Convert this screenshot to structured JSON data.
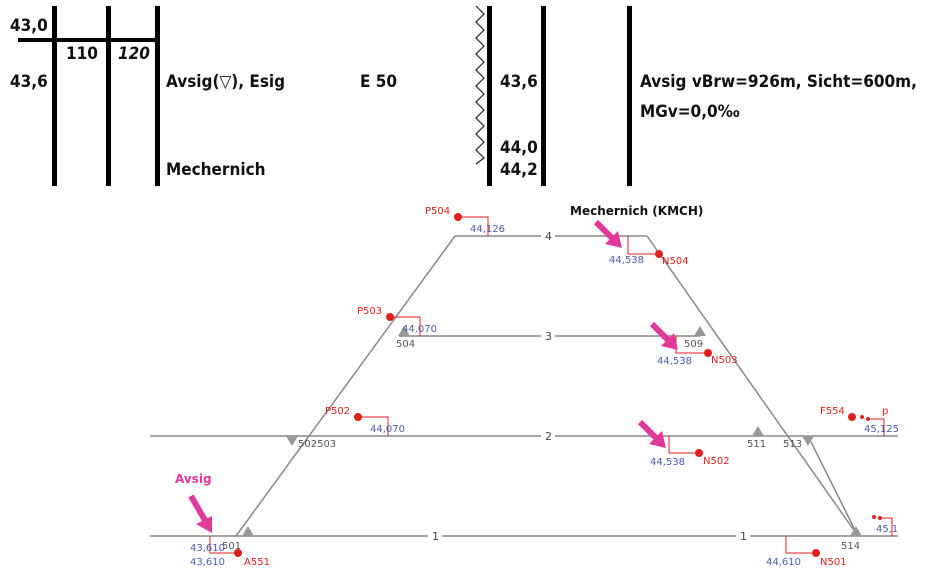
{
  "table": {
    "rows": {
      "km_a": "43,0",
      "km_b": "43,6",
      "speed_1": "110",
      "speed_2": "120",
      "signal_text": "Avsig(▽), Esig",
      "station_name": "Mechernich",
      "e_value": "E 50",
      "km_right_1": "43,6",
      "km_right_2": "44,0",
      "km_right_3": "44,2",
      "remark_line1": "Avsig vBrw=926m, Sicht=600m,",
      "remark_line2": "MGv=0,0‰"
    }
  },
  "diagram": {
    "station_title": "Mechernich (KMCH)",
    "avsig_label": "Avsig",
    "tracks": [
      {
        "label": "4"
      },
      {
        "label": "3"
      },
      {
        "label": "2"
      },
      {
        "label": "1"
      },
      {
        "label": "1"
      }
    ],
    "switches": {
      "s504": "504",
      "s509": "509",
      "s502503": "502503",
      "s511": "511",
      "s513": "513",
      "s501": "501",
      "s514": "514"
    },
    "signals": {
      "P504": "P504",
      "N504": "N504",
      "P503": "P503",
      "N503": "N503",
      "P502": "P502",
      "N502": "N502",
      "F554": "F554",
      "p": "p",
      "A551": "A551",
      "N501": "N501"
    },
    "positions": {
      "p504": "44,126",
      "n504": "44,538",
      "p503": "44,070",
      "n503": "44,538",
      "p502": "44,070",
      "n502": "44,538",
      "f554": "45,125",
      "a551a": "43,610",
      "a551b": "43,610",
      "n501": "44,610",
      "right_cut": "45,1"
    },
    "colors": {
      "signal_red": "#e0201c",
      "km_blue": "#4b5bb0",
      "arrow_pink": "#e0399a",
      "track_gray": "#888888"
    }
  }
}
